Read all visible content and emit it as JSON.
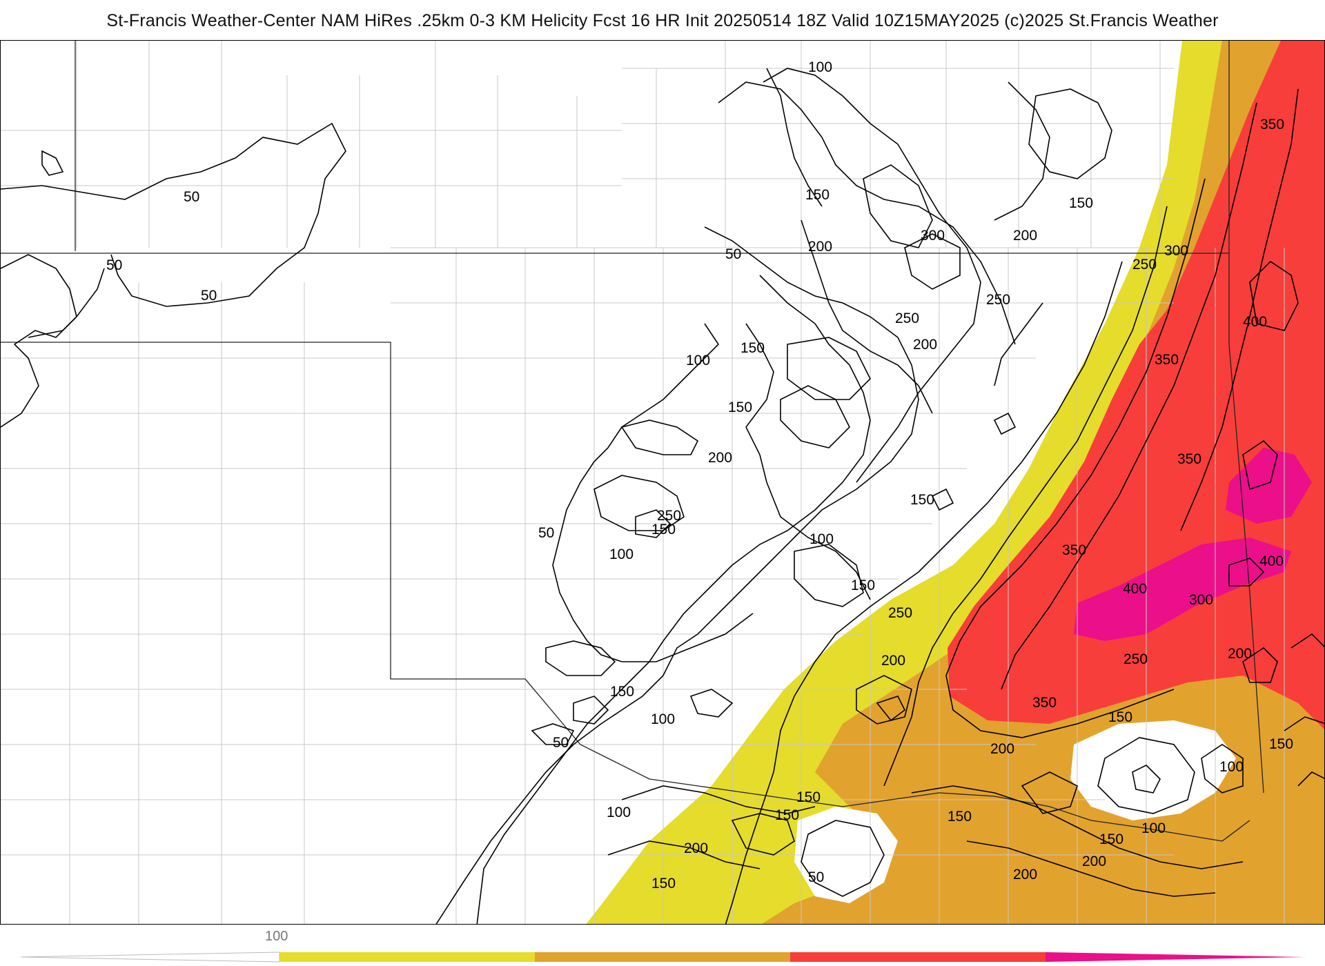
{
  "header": {
    "title": "St-Francis Weather-Center NAM HiRes .25km 0-3 KM Helicity Fcst 16 HR Init 20250514 18Z  Valid 10Z15MAY2025    (c)2025 St.Francis Weather"
  },
  "legend": {
    "tick_label": "100",
    "bins": [
      {
        "color": "#e5dc2b"
      },
      {
        "color": "#e2a22e"
      },
      {
        "color": "#f73e3a"
      },
      {
        "color": "#eb0f8a"
      }
    ]
  },
  "colors": {
    "level_100": "#e5dc2b",
    "level_200": "#e2a22e",
    "level_300": "#f73e3a",
    "level_400": "#eb0f8a",
    "contour": "#000000",
    "county_lines": "#c8c8c8",
    "state_lines": "#222222"
  },
  "contour_labels": [
    {
      "text": "100"
    },
    {
      "text": "50"
    },
    {
      "text": "150"
    },
    {
      "text": "50"
    },
    {
      "text": "50"
    },
    {
      "text": "50"
    },
    {
      "text": "200"
    },
    {
      "text": "300"
    },
    {
      "text": "200"
    },
    {
      "text": "150"
    },
    {
      "text": "350"
    },
    {
      "text": "250"
    },
    {
      "text": "300"
    },
    {
      "text": "250"
    },
    {
      "text": "250"
    },
    {
      "text": "400"
    },
    {
      "text": "200"
    },
    {
      "text": "150"
    },
    {
      "text": "100"
    },
    {
      "text": "350"
    },
    {
      "text": "150"
    },
    {
      "text": "200"
    },
    {
      "text": "350"
    },
    {
      "text": "150"
    },
    {
      "text": "250"
    },
    {
      "text": "150"
    },
    {
      "text": "50"
    },
    {
      "text": "100"
    },
    {
      "text": "100"
    },
    {
      "text": "350"
    },
    {
      "text": "400"
    },
    {
      "text": "150"
    },
    {
      "text": "400"
    },
    {
      "text": "300"
    },
    {
      "text": "250"
    },
    {
      "text": "200"
    },
    {
      "text": "200"
    },
    {
      "text": "250"
    },
    {
      "text": "150"
    },
    {
      "text": "350"
    },
    {
      "text": "100"
    },
    {
      "text": "150"
    },
    {
      "text": "200"
    },
    {
      "text": "150"
    },
    {
      "text": "50"
    },
    {
      "text": "100"
    },
    {
      "text": "150"
    },
    {
      "text": "150"
    },
    {
      "text": "100"
    },
    {
      "text": "150"
    },
    {
      "text": "200"
    },
    {
      "text": "200"
    },
    {
      "text": "200"
    },
    {
      "text": "100"
    },
    {
      "text": "150"
    },
    {
      "text": "50"
    },
    {
      "text": "150"
    }
  ]
}
